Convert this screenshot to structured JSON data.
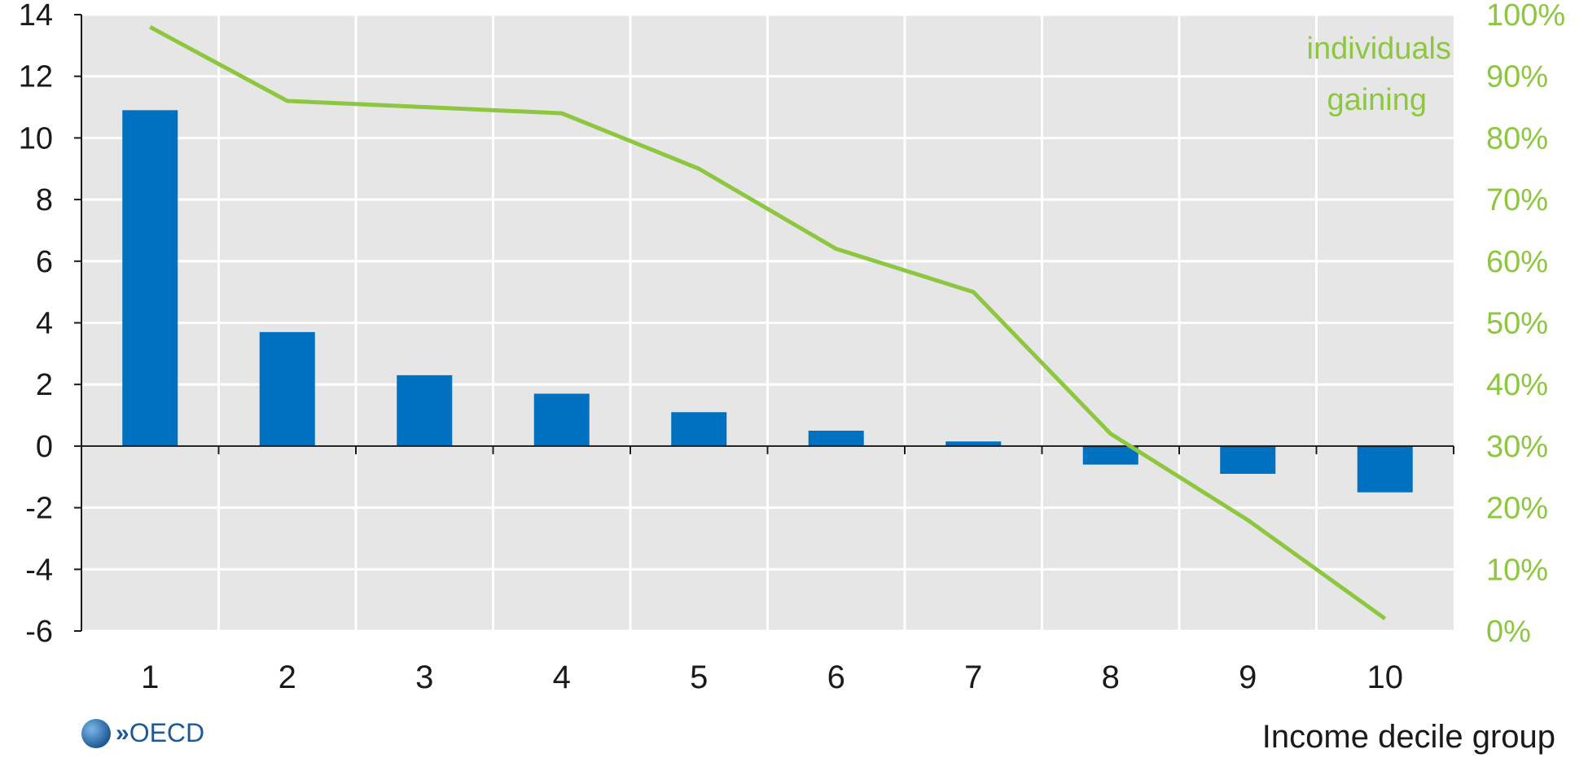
{
  "chart_data": {
    "type": "bar",
    "title": "",
    "xlabel": "Income decile group",
    "ylabel": "",
    "categories": [
      "1",
      "2",
      "3",
      "4",
      "5",
      "6",
      "7",
      "8",
      "9",
      "10"
    ],
    "ylim": [
      -6,
      14
    ],
    "yticks": [
      14,
      12,
      10,
      8,
      6,
      4,
      2,
      0,
      -2,
      -4,
      -6
    ],
    "y2lim": [
      0,
      100
    ],
    "y2ticks": [
      "100%",
      "90%",
      "80%",
      "70%",
      "60%",
      "50%",
      "40%",
      "30%",
      "20%",
      "10%",
      "0%"
    ],
    "grid": true,
    "series": [
      {
        "type": "bar",
        "axis": "left",
        "color": "#0070c0",
        "values": [
          10.9,
          3.7,
          2.3,
          1.7,
          1.1,
          0.5,
          0.15,
          -0.6,
          -0.9,
          -1.5
        ]
      },
      {
        "name": "individuals gaining",
        "type": "line",
        "axis": "right",
        "color": "#8dc63f",
        "values": [
          98,
          86,
          85,
          84,
          75,
          62,
          55,
          32,
          18,
          2
        ]
      }
    ],
    "annotation": [
      "individuals",
      "gaining"
    ]
  },
  "logo": {
    "text": "OECD",
    "chevrons": "»"
  }
}
